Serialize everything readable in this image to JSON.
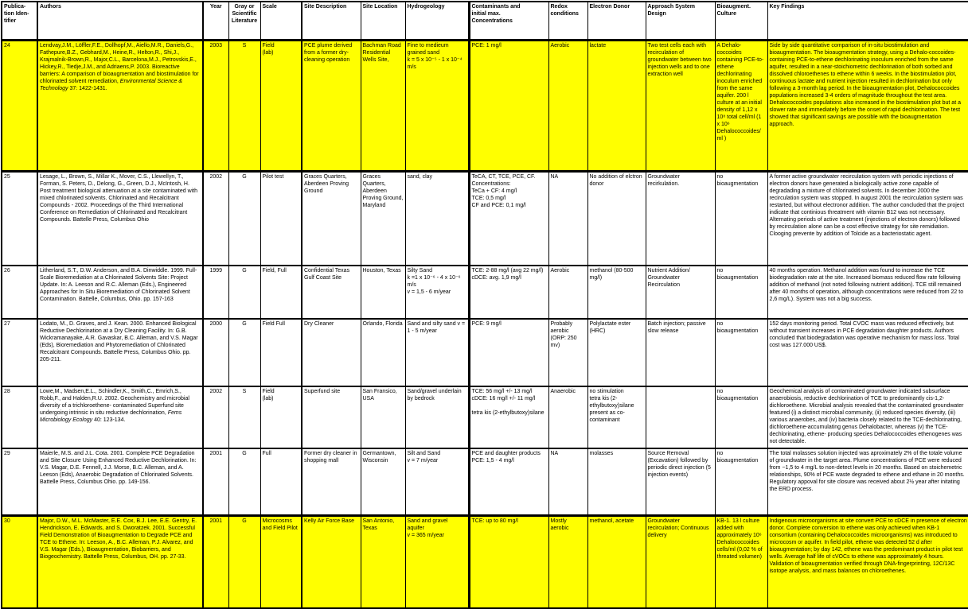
{
  "colors": {
    "highlight": "#ffff00",
    "grid": "#000000",
    "background": "#ffffff"
  },
  "table": {
    "headers": [
      "Publica-\ntion Iden-\ntifier",
      "Authors",
      "Year",
      "Gray or\nScientific\nLiterature",
      "Scale",
      "Site Description",
      "Site Location",
      "Hydrogeology",
      "Contaminants and\ninitial max.\nConcentrations",
      "Redox conditions",
      "Electron Donor",
      "Approach System Design",
      "Bioaugment.\nCulture",
      "Key Findings"
    ],
    "rows": [
      {
        "id": "24",
        "highlight": true,
        "authors_pre": "Lendvay,J.M., Löffler,F.E., Dollhopf,M., Aiello,M.R., Daniels,G., Fathepure,B.Z., Gebhard,M., Heine,R., Helton,R., Shi,J., Krajmalnik-Brown,R., Major,C.L., Barcelona,M.J., Petrovskis,E., Hickey,R., Tiedje,J.M., and Adriaens,P. 2003. Bioreactive barriers: A comparison of bioaugmentation and biostimulation for chlorinated solvent remediation, ",
        "authors_italic": "Environmental Science & Technology",
        "authors_post": " 37: 1422-1431.",
        "year": "2003",
        "literature": "S",
        "scale": "Field\n(lab)",
        "site_description": "PCE plume derived from a former dry-cleaning operation",
        "site_location": "Bachman Road Residential Wells Site,",
        "hydrogeology": "Fine to medieum grained sand\nk = 5 x 10⁻⁵ - 1 x 10⁻⁴ m/s",
        "contaminants": "PCE: 1 mg/l",
        "redox": "Aerobic",
        "electron_donor": "lactate",
        "approach": "Two test cells each with recirculation of groundwater  between two injection wells and to one extraction well",
        "bioaug_culture": "A Dehalo-coccoides containing PCE-to-ethene dechlorinating inoculum enriched from the same aquifer.          200 l culture at an initial density of 1,12 x 10⁸ total cell/ml (1 x 10⁶ Dehalococcoides/ml )",
        "key_findings": "Side by side quantitative comparison of in-situ biostimulation and bioaugmentation. The bioaugmentation strategy, using a Dehalo-coccoides-containing PCE-to-ethene dechlorinating inoculum enriched from the same aquifer, resulted in a near-stoichiometric dechlorination of both sorbed and dissolved chloroethenes to ethene within 6 weeks. In the biostimulation plot, continuous lactate and nutrient injection resulted in dechlorination but only following a 3-month lag period. In the bioaugmentation plot, Dehalococcoides populations increased 3-4 orders of magnitude throughout the test area. Dehalococcoides populations also increased in the biostimulation plot but at a slower rate and immediately before the onset of rapid dechlorination. The test showed that significant savings are possible with the bioaugmentation approach."
      },
      {
        "id": "25",
        "highlight": false,
        "authors_pre": "Lesage, L., Brown, S., Millar K., Mover, C.S., Llewellyn, T., Forman, S. Peters, D., Delong, G., Green, D.J., McIntosh, H. Post treatment biological attenuation at a site contaminated with mixed chlorinated solvents. Chlorinated and Recalcitrant Compounds - 2002. Proceedings of the Third International Conference on Remediation of Chlorinated and Recalcitrant Compounds. Battelle Press, Columbus Ohio",
        "authors_italic": "",
        "authors_post": "",
        "year": "2002",
        "literature": "G",
        "scale": "Pilot test",
        "site_description": "Graces Quarters, Aberdeen Proving Ground",
        "site_location": "Graces Quarters, Aberdeen Proving Ground, Maryland",
        "hydrogeology": "sand, clay",
        "contaminants": "TeCA, CT, TCE, PCE, CF.\nConcentrations:\nTeCa + CF: 4 mg/l\nTCE: 0,5 mg/l\nCF and PCE: 0,1 mg/l",
        "redox": "NA",
        "electron_donor": "No addition of elctron donor",
        "approach": "Groundwater recirkulation.",
        "bioaug_culture": "no bioaugmentation",
        "key_findings": "A former active groundwater recirculation system with periodic injections of electron donors have generated a biologically active zone capable of degradading a mixture of chlorinated solvents. In december 2000 the recirculation system was stopped. In august 2001 the recirculation system was restarted, but without electronor addition. The author concluded that the project indicate that continious threatment with vitamin B12 was not necessary. Alternating periods of active treatment (injections of electron donors) followed by recirculation alone can be a cost effective strategy for site remidiation. Clooging prevente by addition of Tolcide as a bacteriostatic agent."
      },
      {
        "id": "26",
        "highlight": false,
        "authors_pre": "Litherland, S.T., D.W. Anderson, and B.A. Dinwiddle. 1999. Full-Scale Bioremediation at a Chlorinated Solvents Site: Project Update. In: A. Leeson and R.C. Alleman (Eds.), Engineered Approaches for In Situ Bioremediation of Chlorinated Solvent Contamination.  Battelle, Columbus, Ohio. pp. 157-163",
        "authors_italic": "",
        "authors_post": "",
        "year": "1999",
        "literature": "G",
        "scale": "Field, Full",
        "site_description": "Confidential Texas Gulf Coast Site",
        "site_location": "Houston, Texas",
        "hydrogeology": "Silty Sand\nk =1 x 10⁻⁶ - 4 x 10⁻⁶ m/s\nv = 1,5 - 6 m/year",
        "contaminants": "TCE: 2-88 mg/l (avg 22 mg/l)\ncDCE: avg. 1,9 mg/l",
        "redox": "Aerobic",
        "electron_donor": "methanol (80-500 mg/l)",
        "approach": "Nutrient Addition/ Groundwater Recirculation",
        "bioaug_culture": "no bioaugmentation",
        "key_findings": "40 months operation. Methanol addition was found to increase the TCE biodegradation rate at the site.  Increased biomass reduced flow rate following addition of methanol (not noted following nutrient addition).  TCE still remained after 40 months of operation, although concentrations were reduced from 22 to 2,6 mg/L).  System was not a big success."
      },
      {
        "id": "27",
        "highlight": false,
        "authors_pre": "Lodato, M., D. Graves, and J. Kean. 2000. Enhanced Biological Reductive Dechlorination at a Dry Cleaning Facility.  In: G.B. Wickramanayake, A.R. Gavaskar, B.C. Alleman, and V.S. Magar (Eds), Bioremediation and Phytoremediation of Chlorinated Recalcitrant Compounds. Battelle Press, Columbus Ohio. pp. 205-211.",
        "authors_italic": "",
        "authors_post": "",
        "year": "2000",
        "literature": "G",
        "scale": "Field Full",
        "site_description": "Dry Cleaner",
        "site_location": "Orlando, Florida",
        "hydrogeology": "Sand and silty sand      v = 1 - 5 m/year",
        "contaminants": "PCE: 9 mg/l",
        "redox": "Probably aerobic (ORP: 250 mv)",
        "electron_donor": "Polylactate ester (HRC)",
        "approach": "Batch injection; passive slow release",
        "bioaug_culture": "no bioaugmentation",
        "key_findings": "152 days monitoring period. Total CVOC mass was reduced effectively, but without transient increases in PCE degradation daughter products. Authors concluded that biodegradation was operative mechanism for mass loss. Total cost was 127.000 US$."
      },
      {
        "id": "28",
        "highlight": false,
        "authors_pre": "Lowe,M., Madsen,E.L., Schindler,K., Smith,C., Emrich,S., Robb,F., and Halden,R.U. 2002. Geochemistry and microbial diversity of a trichloroethene- contaminated Superfund site undergoing intrinsic in situ reductive dechlorination, ",
        "authors_italic": "Fems Microbiology Ecology",
        "authors_post": " 40: 123-134.",
        "year": "2002",
        "literature": "S",
        "scale": "Field\n(lab)",
        "site_description": "Superfund site",
        "site_location": "San Fransico, USA",
        "hydrogeology": "Sand/gravel underlain by bedrock",
        "contaminants": "TCE: 56  mg/l +/- 13 mg/l\ncDCE: 16 mg/l +/- 11 mg/l\n\ntetra kis (2-ethylbutoxy)silane",
        "redox": "Anaerobic",
        "electron_donor": "no stimulation\ntetra kis (2-ethylbutoxy)silane\n present as co-contaminant",
        "approach": "",
        "bioaug_culture": "no bioaugmentation",
        "key_findings": "Geochemical analysis of contaminated groundwater indicated subsurface anaerobiosis, reductive dechlorination of TCE to predominantly cis-1,2-dichloroethene. Microbial analysis revealed that the contaminated groundwater featured (i) a distinct microbial community, (ii) reduced species diversity, (iii) various anaerobes, and (iv) bacteria closely related to the TCE-dechlorinating, dichloroethene-accumulating genus Dehalobacter, whereas (v) the TCE-dechlorinating, ethene- producing species Dehalococcoides ethenogenes was not detectable."
      },
      {
        "id": "29",
        "highlight": false,
        "authors_pre": "Maierle, M.S. and J.L. Cota. 2001. Complete PCE Degradation and Site Closure Using Enhanced Reductive Dechlorination. In: V.S. Magar, D.E. Fennell, J.J. Morse, B.C. Alleman, and A. Leeson (Eds), Anaerobic Degradation of Chlorinated Solvents. Battelle Press, Columbus Ohio. pp. 149-156.",
        "authors_italic": "",
        "authors_post": "",
        "year": "2001",
        "literature": "G",
        "scale": "Full",
        "site_description": "Former dry cleaner in shopping mall",
        "site_location": "Germantown, Wisconsin",
        "hydrogeology": "Silt and Sand\nv = 7 m/year",
        "contaminants": "PCE and daughter products\nPCE: 1,5 - 4 mg/l",
        "redox": "NA",
        "electron_donor": "molasses",
        "approach": "Source Removal (Excavation) followed by periodic direct injection (5 injection events)",
        "bioaug_culture": "no bioaugmentation",
        "key_findings": "The total molasses solution injected was  aproximately 2% of the totale volume of groundwater in the target area. Plume concentrations of PCE were reduced from ~1,5 to 4  mg/L to non-detect levels in 20 months.  Based on stoichemetric relationships, 90% of PCE waste degraded to ethene and ethane in 20 months. Regulatory appoval for site closure was received about 2½ year after initating the ERD process."
      },
      {
        "id": "30",
        "highlight": true,
        "authors_pre": "Major, D.W., M.L. McMaster, E.E. Cox, B.J. Lee, E.E. Gentry, E. Hendrickson, E. Edwards, and S. Dworatzek. 2001.  Successful Field Demonstration of Bioaugmentation to Degrade PCE and TCE to Ethene. In: Leeson, A., B.C. Alleman, P.J. Alvarez, and V.S. Magar (Eds.), Bioaugmentation, Biobarriers, and Biogeochemistry. Battelle Press, Columbus, OH. pp. 27-33.",
        "authors_italic": "",
        "authors_post": "",
        "year": "2001",
        "literature": "G",
        "scale": "Microcosms and Field Pilot",
        "site_description": "Kelly Air Force Base",
        "site_location": "San Antonio, Texas",
        "hydrogeology": "Sand and gravel aquifer\nv = 365 m/year",
        "contaminants": "TCE: up to 80 mg/l",
        "redox": "Mostly aerobic",
        "electron_donor": "methanol, acetate",
        "approach": "Groundwater recirculation; Continuous delivery",
        "bioaug_culture": "KB-1. 13 l culture added with approximately 10⁶ Dehalococcoides cells/ml (0,02 % of threated volumen)",
        "key_findings": "Indigenous microorganisms at site convert PCE to cDCE in presence of electron donor. Complete conversion to ethene was only achieved when KB-1 consortium (containing Dehalococcoides microorganisms) was introduced to microcosm or aquifer.  In field pilot, ethene was detected 52 d after bioaugmentation; by day 142, ethene was the predominant product in pilot test wells. Average half life of cVOCs to ethene was approximately 4 hours.  Validation of bioaugmentation verified through DNA-fingerprinting, 12C/13C isotope analysis, and mass balances on chloroethenes."
      }
    ]
  }
}
